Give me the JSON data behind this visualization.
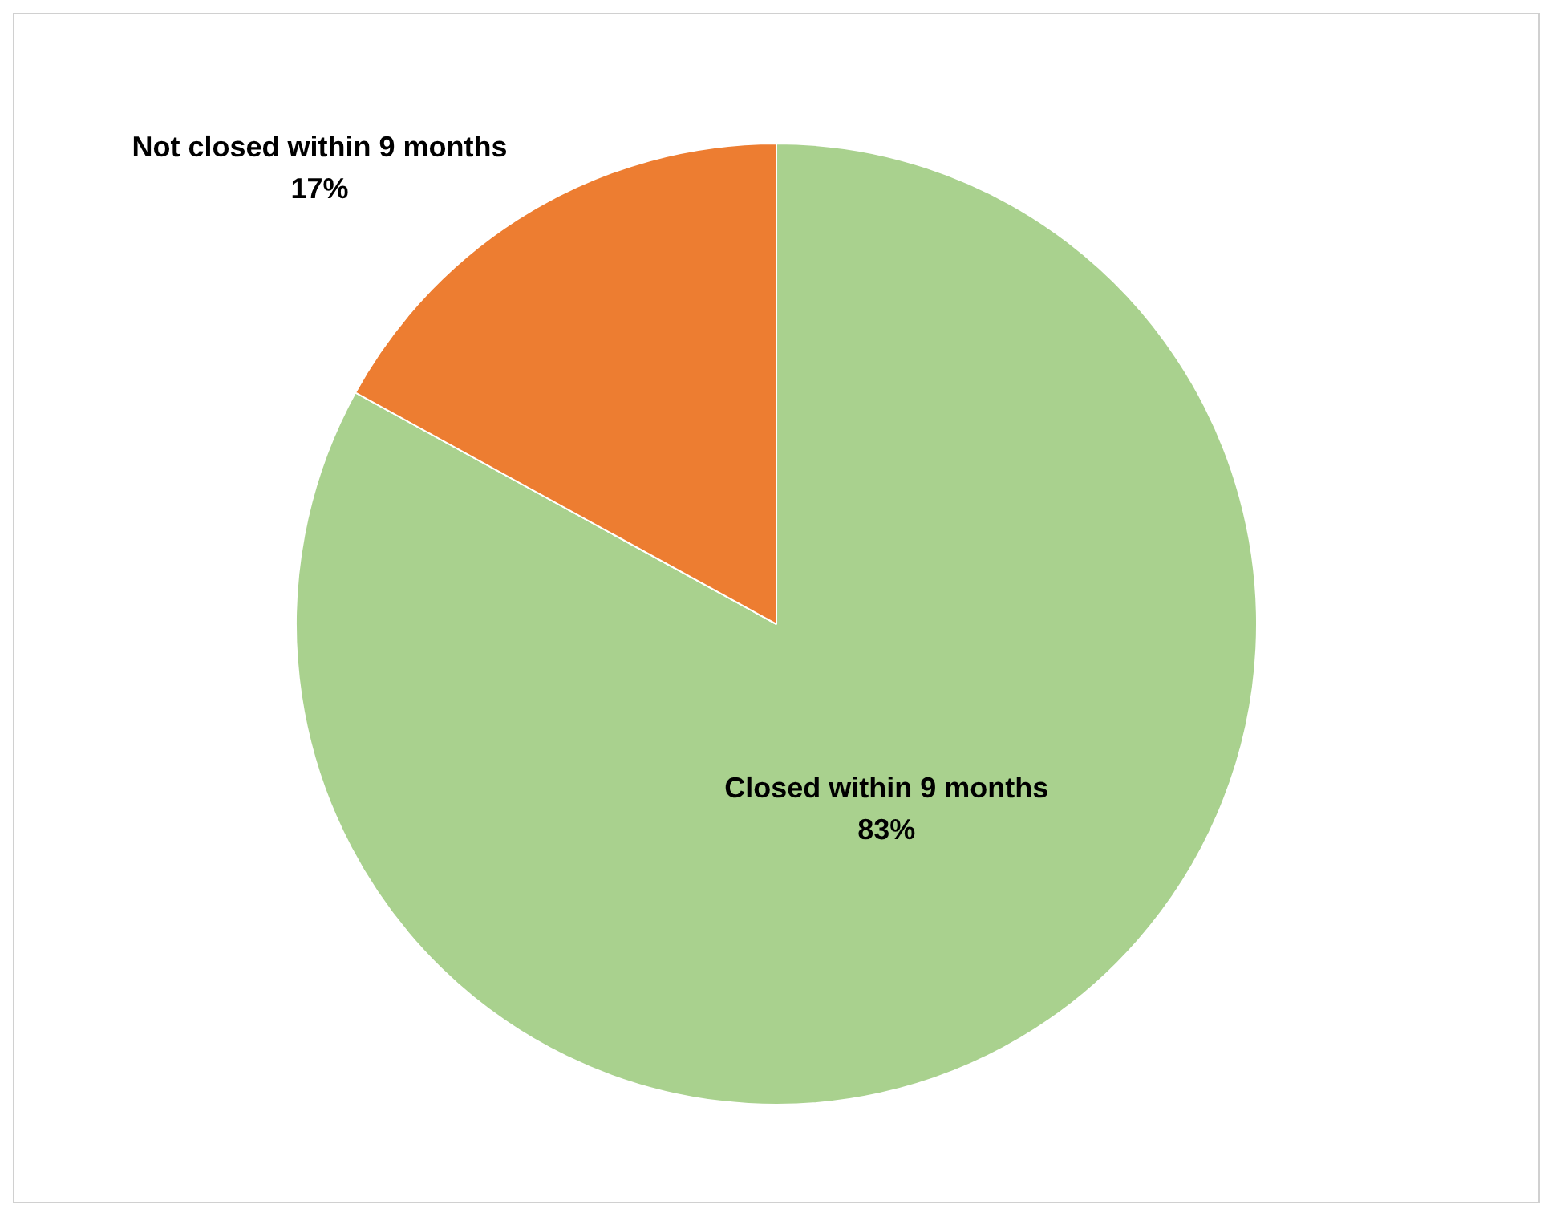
{
  "chart_data": {
    "type": "pie",
    "categories": [
      "Closed within 9 months",
      "Not closed within 9 months"
    ],
    "values": [
      83,
      17
    ],
    "colors": [
      "#a9d18e",
      "#ed7d31"
    ],
    "value_labels": [
      "83%",
      "17%"
    ],
    "legend": false
  }
}
